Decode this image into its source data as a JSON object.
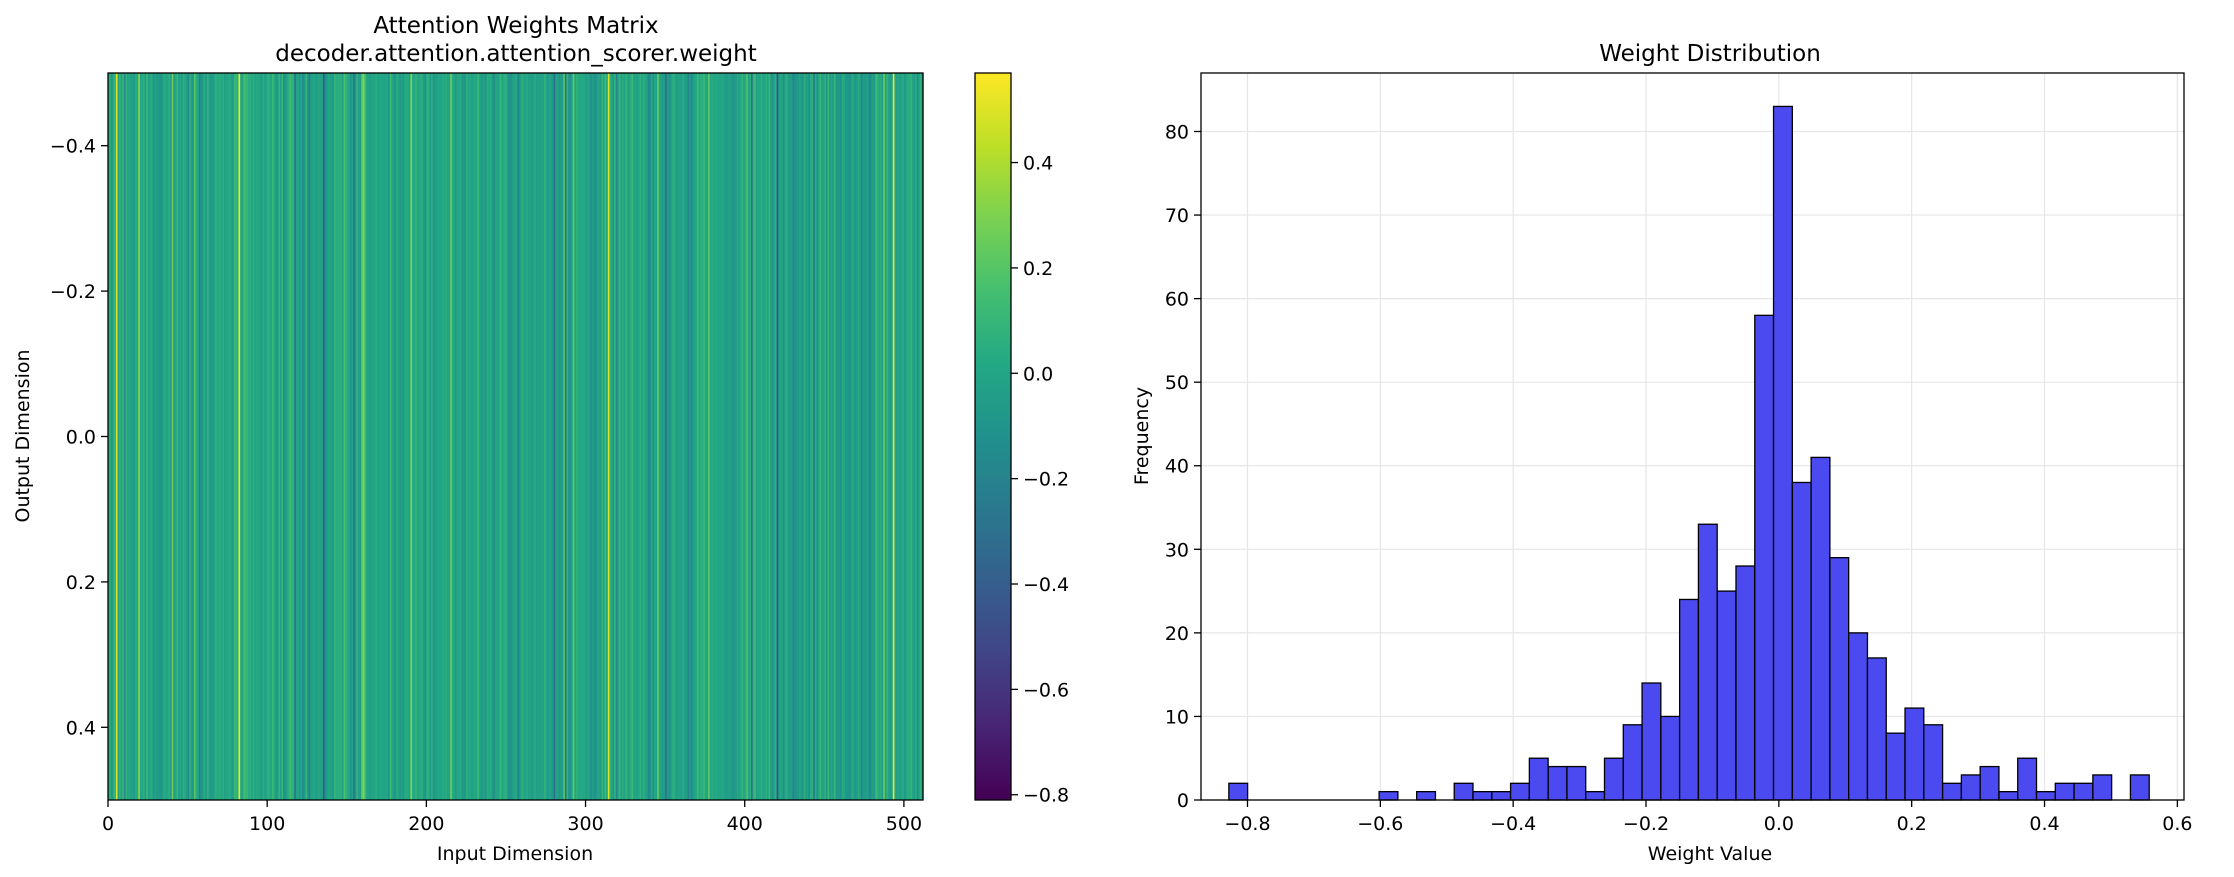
{
  "chart_data": [
    {
      "type": "heatmap",
      "title_line1": "Attention Weights Matrix",
      "title_line2": "decoder.attention.attention_scorer.weight",
      "xlabel": "Input Dimension",
      "ylabel": "Output Dimension",
      "colormap": "viridis",
      "shape": [
        1,
        512
      ],
      "xlim": [
        0,
        512
      ],
      "ylim": [
        0.5,
        -0.5
      ],
      "xticks": [
        0,
        100,
        200,
        300,
        400,
        500
      ],
      "xtick_labels": [
        "0",
        "100",
        "200",
        "300",
        "400",
        "500"
      ],
      "yticks": [
        -0.4,
        -0.2,
        0.0,
        0.2,
        0.4
      ],
      "ytick_labels": [
        "−0.4",
        "−0.2",
        "0.0",
        "0.2",
        "0.4"
      ],
      "colorbar": {
        "vmin": -0.81,
        "vmax": 0.57,
        "ticks": [
          -0.8,
          -0.6,
          -0.4,
          -0.2,
          0.0,
          0.2,
          0.4
        ],
        "tick_labels": [
          "−0.8",
          "−0.6",
          "−0.4",
          "−0.2",
          "0.0",
          "0.2",
          "0.4"
        ]
      },
      "notable_columns": [
        {
          "x": 5,
          "value": 0.5
        },
        {
          "x": 82,
          "value": 0.55
        },
        {
          "x": 135,
          "value": -0.42
        },
        {
          "x": 280,
          "value": -0.3
        },
        {
          "x": 314,
          "value": 0.5
        },
        {
          "x": 350,
          "value": -0.3
        },
        {
          "x": 420,
          "value": -0.45
        },
        {
          "x": 493,
          "value": 0.55
        }
      ]
    },
    {
      "type": "bar",
      "subtype": "histogram",
      "title": "Weight Distribution",
      "xlabel": "Weight Value",
      "ylabel": "Frequency",
      "xlim": [
        -0.87,
        0.61
      ],
      "ylim": [
        0,
        87
      ],
      "xticks": [
        -0.8,
        -0.6,
        -0.4,
        -0.2,
        0.0,
        0.2,
        0.4,
        0.6
      ],
      "xtick_labels": [
        "−0.8",
        "−0.6",
        "−0.4",
        "−0.2",
        "0.0",
        "0.2",
        "0.4",
        "0.6"
      ],
      "yticks": [
        0,
        10,
        20,
        30,
        40,
        50,
        60,
        70,
        80
      ],
      "ytick_labels": [
        "0",
        "10",
        "20",
        "30",
        "40",
        "50",
        "60",
        "70",
        "80"
      ],
      "grid": true,
      "color": "#4a4af0",
      "edgecolor": "#000000",
      "bins": {
        "start": -0.8281,
        "width": 0.02828,
        "counts": [
          2,
          0,
          0,
          0,
          0,
          0,
          0,
          0,
          1,
          0,
          1,
          0,
          2,
          1,
          1,
          2,
          5,
          4,
          4,
          1,
          5,
          9,
          14,
          10,
          24,
          33,
          25,
          28,
          58,
          83,
          38,
          41,
          29,
          20,
          17,
          8,
          11,
          9,
          2,
          3,
          4,
          1,
          5,
          1,
          2,
          2,
          3,
          0,
          3
        ]
      }
    }
  ]
}
